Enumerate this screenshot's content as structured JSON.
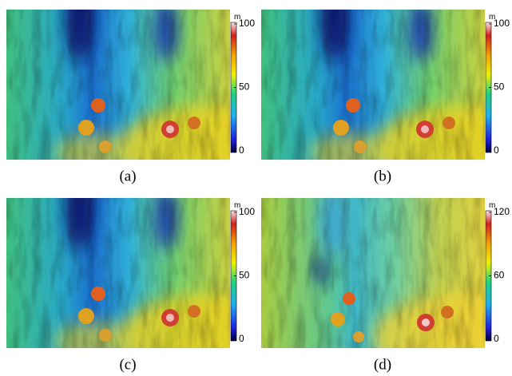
{
  "panels": [
    {
      "caption": "(a)",
      "unit": "m",
      "colorbar": {
        "lim": [
          0,
          100
        ],
        "ticks": [
          0,
          50,
          100
        ]
      }
    },
    {
      "caption": "(b)",
      "unit": "m",
      "colorbar": {
        "lim": [
          0,
          100
        ],
        "ticks": [
          0,
          50,
          100
        ]
      }
    },
    {
      "caption": "(c)",
      "unit": "m",
      "colorbar": {
        "lim": [
          0,
          100
        ],
        "ticks": [
          0,
          50,
          100
        ]
      }
    },
    {
      "caption": "(d)",
      "unit": "m",
      "colorbar": {
        "lim": [
          0,
          120
        ],
        "ticks": [
          0,
          60,
          120
        ]
      }
    }
  ]
}
